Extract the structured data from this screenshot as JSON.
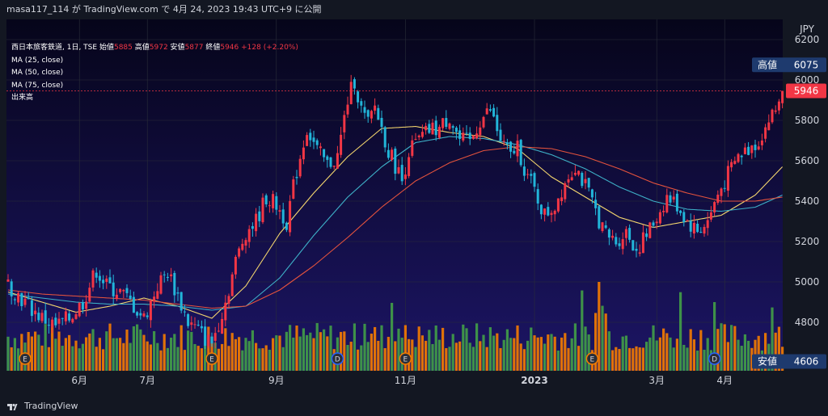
{
  "header": {
    "user": "masa117_114",
    "text": "が TradingView.com で 4月 24, 2023 19:43 UTC+9 に公開"
  },
  "footer": {
    "brand": "TradingView"
  },
  "legend": {
    "symbol": "西日本旅客鉄道, 1日, TSE",
    "open_label": "始値",
    "open": "5885",
    "high_label": "高値",
    "high": "5972",
    "low_label": "安値",
    "low": "5877",
    "close_label": "終値",
    "close": "5946",
    "change": "+128 (+2.20%)",
    "ma1": "MA (25, close)",
    "ma2": "MA (50, close)",
    "ma3": "MA (75, close)",
    "volume": "出来高"
  },
  "chart_data": {
    "type": "candlestick",
    "currency": "JPY",
    "y_ticks": [
      6200,
      6000,
      5800,
      5600,
      5400,
      5200,
      5000,
      4800
    ],
    "ylim": [
      4560,
      6300
    ],
    "x_ticks": [
      "6月",
      "7月",
      "9月",
      "11月",
      "2023",
      "3月",
      "4月"
    ],
    "price_labels": {
      "high": {
        "label": "高値",
        "value": 6075
      },
      "last": {
        "value": 5946
      },
      "low": {
        "label": "安値",
        "value": 4606
      }
    },
    "price_path": [
      [
        0,
        4990
      ],
      [
        6,
        4880
      ],
      [
        10,
        4820
      ],
      [
        14,
        4780
      ],
      [
        18,
        4820
      ],
      [
        22,
        4900
      ],
      [
        26,
        5060
      ],
      [
        29,
        4980
      ],
      [
        33,
        4950
      ],
      [
        36,
        4900
      ],
      [
        40,
        4820
      ],
      [
        44,
        4980
      ],
      [
        47,
        5050
      ],
      [
        50,
        4930
      ],
      [
        53,
        4800
      ],
      [
        56,
        4760
      ],
      [
        58,
        4720
      ],
      [
        60,
        4700
      ],
      [
        62,
        4800
      ],
      [
        64,
        4900
      ],
      [
        67,
        5100
      ],
      [
        70,
        5250
      ],
      [
        73,
        5300
      ],
      [
        76,
        5420
      ],
      [
        79,
        5380
      ],
      [
        82,
        5300
      ],
      [
        85,
        5550
      ],
      [
        88,
        5760
      ],
      [
        91,
        5650
      ],
      [
        94,
        5580
      ],
      [
        97,
        5620
      ],
      [
        100,
        5900
      ],
      [
        102,
        6000
      ],
      [
        104,
        5850
      ],
      [
        106,
        5780
      ],
      [
        108,
        5870
      ],
      [
        110,
        5760
      ],
      [
        112,
        5650
      ],
      [
        114,
        5580
      ],
      [
        116,
        5500
      ],
      [
        118,
        5650
      ],
      [
        121,
        5700
      ],
      [
        124,
        5750
      ],
      [
        127,
        5760
      ],
      [
        130,
        5820
      ],
      [
        133,
        5700
      ],
      [
        136,
        5690
      ],
      [
        139,
        5800
      ],
      [
        142,
        5850
      ],
      [
        145,
        5700
      ],
      [
        148,
        5620
      ],
      [
        150,
        5680
      ],
      [
        152,
        5560
      ],
      [
        155,
        5450
      ],
      [
        158,
        5330
      ],
      [
        161,
        5380
      ],
      [
        164,
        5500
      ],
      [
        167,
        5580
      ],
      [
        170,
        5470
      ],
      [
        173,
        5350
      ],
      [
        176,
        5230
      ],
      [
        179,
        5200
      ],
      [
        182,
        5250
      ],
      [
        185,
        5160
      ],
      [
        188,
        5230
      ],
      [
        191,
        5320
      ],
      [
        194,
        5420
      ],
      [
        197,
        5380
      ],
      [
        200,
        5300
      ],
      [
        203,
        5250
      ],
      [
        206,
        5300
      ],
      [
        209,
        5430
      ],
      [
        212,
        5530
      ],
      [
        215,
        5620
      ],
      [
        218,
        5660
      ],
      [
        221,
        5700
      ],
      [
        224,
        5800
      ],
      [
        226,
        5850
      ],
      [
        228,
        5946
      ]
    ],
    "ma_series": [
      {
        "name": "MA (25, close)",
        "color": "#f5d76e",
        "values": [
          [
            0,
            4950
          ],
          [
            10,
            4900
          ],
          [
            20,
            4850
          ],
          [
            30,
            4880
          ],
          [
            40,
            4920
          ],
          [
            50,
            4880
          ],
          [
            60,
            4820
          ],
          [
            70,
            4980
          ],
          [
            80,
            5240
          ],
          [
            90,
            5440
          ],
          [
            100,
            5620
          ],
          [
            110,
            5760
          ],
          [
            120,
            5770
          ],
          [
            130,
            5740
          ],
          [
            140,
            5720
          ],
          [
            150,
            5660
          ],
          [
            160,
            5520
          ],
          [
            170,
            5420
          ],
          [
            180,
            5320
          ],
          [
            190,
            5270
          ],
          [
            200,
            5300
          ],
          [
            210,
            5330
          ],
          [
            220,
            5430
          ],
          [
            228,
            5570
          ]
        ]
      },
      {
        "name": "MA (50, close)",
        "color": "#3eb1c8",
        "values": [
          [
            0,
            4940
          ],
          [
            10,
            4920
          ],
          [
            20,
            4900
          ],
          [
            30,
            4890
          ],
          [
            40,
            4890
          ],
          [
            50,
            4880
          ],
          [
            60,
            4860
          ],
          [
            70,
            4880
          ],
          [
            80,
            5020
          ],
          [
            90,
            5230
          ],
          [
            100,
            5420
          ],
          [
            110,
            5570
          ],
          [
            120,
            5690
          ],
          [
            130,
            5720
          ],
          [
            140,
            5710
          ],
          [
            150,
            5680
          ],
          [
            160,
            5630
          ],
          [
            170,
            5560
          ],
          [
            180,
            5470
          ],
          [
            190,
            5400
          ],
          [
            200,
            5360
          ],
          [
            210,
            5350
          ],
          [
            220,
            5370
          ],
          [
            228,
            5430
          ]
        ]
      },
      {
        "name": "MA (75, close)",
        "color": "#e5533d",
        "values": [
          [
            0,
            4960
          ],
          [
            10,
            4940
          ],
          [
            20,
            4930
          ],
          [
            30,
            4920
          ],
          [
            40,
            4910
          ],
          [
            50,
            4890
          ],
          [
            60,
            4870
          ],
          [
            70,
            4880
          ],
          [
            80,
            4960
          ],
          [
            90,
            5080
          ],
          [
            100,
            5220
          ],
          [
            110,
            5370
          ],
          [
            120,
            5500
          ],
          [
            130,
            5590
          ],
          [
            140,
            5650
          ],
          [
            150,
            5670
          ],
          [
            160,
            5660
          ],
          [
            170,
            5620
          ],
          [
            180,
            5560
          ],
          [
            190,
            5490
          ],
          [
            200,
            5440
          ],
          [
            210,
            5400
          ],
          [
            220,
            5400
          ],
          [
            228,
            5420
          ]
        ]
      }
    ]
  }
}
